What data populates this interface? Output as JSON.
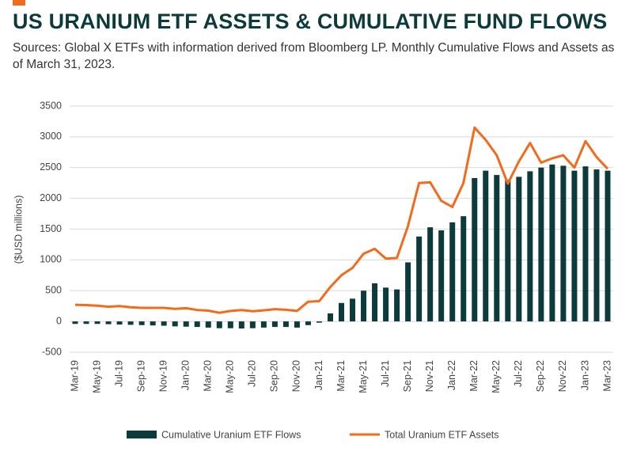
{
  "chart_data": {
    "type": "bar-line",
    "title": "US URANIUM ETF ASSETS & CUMULATIVE FUND FLOWS",
    "subtitle": "Sources: Global X ETFs with information derived from Bloomberg LP. Monthly Cumulative Flows and Assets as of March 31, 2023.",
    "ylabel": "($USD millions)",
    "categories": [
      "Mar-19",
      null,
      "May-19",
      null,
      "Jul-19",
      null,
      "Sep-19",
      null,
      "Nov-19",
      null,
      "Jan-20",
      null,
      "Mar-20",
      null,
      "May-20",
      null,
      "Jul-20",
      null,
      "Sep-20",
      null,
      "Nov-20",
      null,
      "Jan-21",
      null,
      "Mar-21",
      null,
      "May-21",
      null,
      "Jul-21",
      null,
      "Sep-21",
      null,
      "Nov-21",
      null,
      "Jan-22",
      null,
      "Mar-22",
      null,
      "May-22",
      null,
      "Jul-22",
      null,
      "Sep-22",
      null,
      "Nov-22",
      null,
      "Jan-23",
      null,
      "Mar-23"
    ],
    "series": [
      {
        "name": "Cumulative Uranium ETF Flows",
        "kind": "bar",
        "color": "#0d3b3b",
        "values": [
          -40,
          -40,
          -40,
          -45,
          -50,
          -55,
          -60,
          -65,
          -70,
          -80,
          -85,
          -90,
          -100,
          -110,
          -110,
          -115,
          -110,
          -100,
          -90,
          -90,
          -100,
          -60,
          -20,
          130,
          300,
          370,
          500,
          620,
          550,
          520,
          960,
          1380,
          1530,
          1480,
          1610,
          1710,
          2330,
          2450,
          2380,
          2300,
          2350,
          2440,
          2500,
          2550,
          2530,
          2450,
          2520,
          2470,
          2450
        ]
      },
      {
        "name": "Total Uranium ETF Assets",
        "kind": "line",
        "color": "#f26b1d",
        "values": [
          270,
          265,
          255,
          240,
          250,
          230,
          220,
          220,
          220,
          205,
          215,
          185,
          175,
          140,
          170,
          185,
          165,
          180,
          200,
          190,
          170,
          320,
          330,
          560,
          750,
          870,
          1100,
          1180,
          1020,
          1030,
          1550,
          2250,
          2260,
          1960,
          1860,
          2250,
          3150,
          2950,
          2700,
          2240,
          2600,
          2900,
          2580,
          2650,
          2700,
          2500,
          2930,
          2670,
          2480
        ]
      }
    ],
    "ylim": [
      -500,
      3500
    ],
    "yticks": [
      -500,
      0,
      500,
      1000,
      1500,
      2000,
      2500,
      3000,
      3500
    ],
    "grid": true
  }
}
